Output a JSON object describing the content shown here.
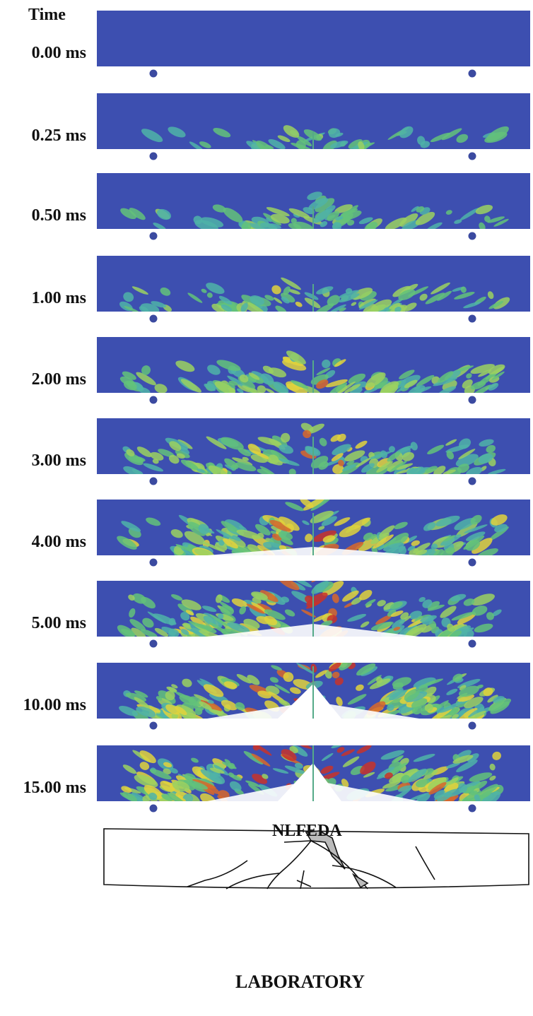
{
  "header": {
    "title": "Time"
  },
  "panels": [
    {
      "time": "0.00 ms"
    },
    {
      "time": "0.25 ms"
    },
    {
      "time": "0.50 ms"
    },
    {
      "time": "1.00 ms"
    },
    {
      "time": "2.00 ms"
    },
    {
      "time": "3.00 ms"
    },
    {
      "time": "4.00 ms"
    },
    {
      "time": "5.00 ms"
    },
    {
      "time": "10.00 ms"
    },
    {
      "time": "15.00 ms"
    }
  ],
  "captions": {
    "simulation": "NLFEDA",
    "experiment": "LABORATORY"
  }
}
